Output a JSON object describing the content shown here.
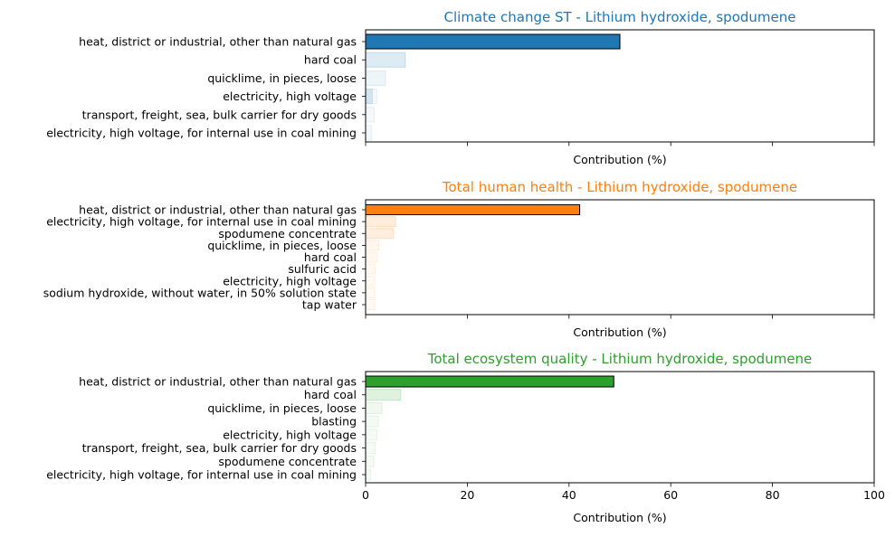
{
  "chart_data": [
    {
      "type": "bar",
      "orientation": "horizontal",
      "title": "Climate change ST - Lithium hydroxide, spodumene",
      "title_color": "#1f77b4",
      "color": "#1f77b4",
      "xlabel": "Contribution (%)",
      "xlim": [
        0,
        100
      ],
      "categories": [
        "heat, district or industrial, other than natural gas",
        "hard coal",
        "quicklime, in pieces, loose",
        "electricity, high voltage",
        "transport, freight, sea, bulk carrier for dry goods",
        "electricity, high voltage, for internal use in coal mining"
      ],
      "values": [
        50,
        7.8,
        3.9,
        2.2,
        1.7,
        1.2
      ],
      "overlay": {
        "category_index": 3,
        "value": 1.3
      }
    },
    {
      "type": "bar",
      "orientation": "horizontal",
      "title": "Total human health - Lithium hydroxide, spodumene",
      "title_color": "#ff7f0e",
      "color": "#ff7f0e",
      "xlabel": "Contribution (%)",
      "xlim": [
        0,
        100
      ],
      "categories": [
        "heat, district or industrial, other than natural gas",
        "electricity, high voltage, for internal use in coal mining",
        "spodumene concentrate",
        "quicklime, in pieces, loose",
        "hard coal",
        "sulfuric acid",
        "electricity, high voltage",
        "sodium hydroxide, without water, in 50% solution state",
        "tap water"
      ],
      "values": [
        42.1,
        5.9,
        5.5,
        2.6,
        2.3,
        1.9,
        1.8,
        1.8,
        1.8
      ]
    },
    {
      "type": "bar",
      "orientation": "horizontal",
      "title": "Total ecosystem quality - Lithium hydroxide, spodumene",
      "title_color": "#2ca02c",
      "color": "#2ca02c",
      "xlabel": "Contribution (%)",
      "xlim": [
        0,
        100
      ],
      "xticks": [
        0,
        20,
        40,
        60,
        80,
        100
      ],
      "categories": [
        "heat, district or industrial, other than natural gas",
        "hard coal",
        "quicklime, in pieces, loose",
        "blasting",
        "electricity, high voltage",
        "transport, freight, sea, bulk carrier for dry goods",
        "spodumene concentrate",
        "electricity, high voltage, for internal use in coal mining"
      ],
      "values": [
        48.8,
        6.9,
        3.2,
        2.5,
        2.2,
        1.9,
        1.6,
        1.0
      ]
    }
  ]
}
